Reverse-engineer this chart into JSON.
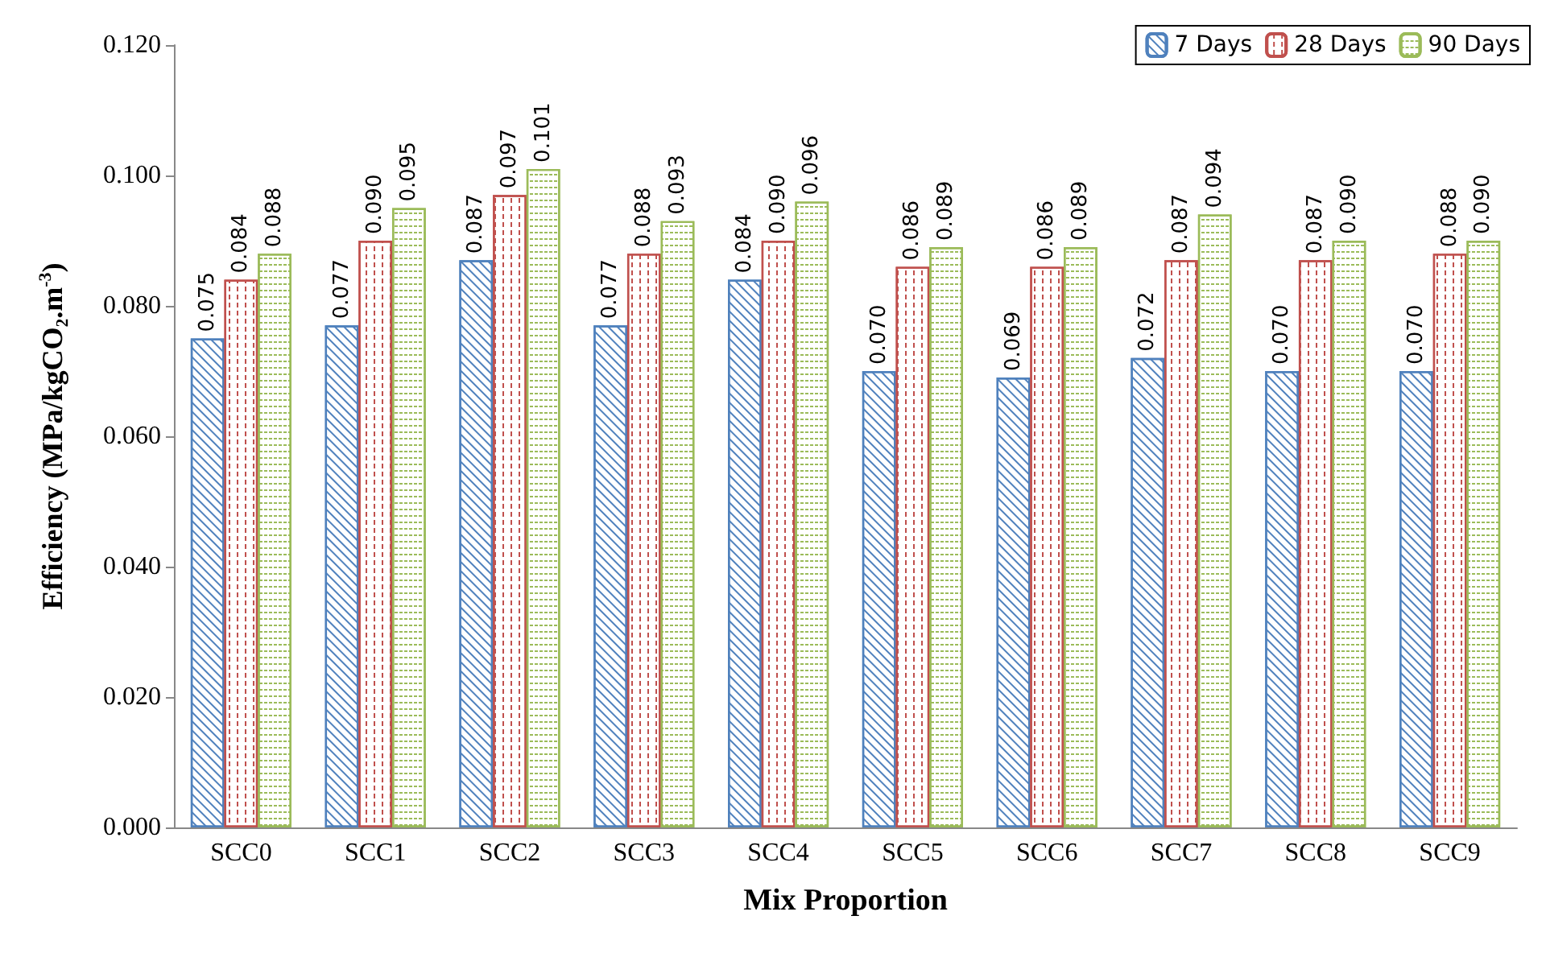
{
  "chart_data": {
    "type": "bar",
    "xlabel": "Mix Proportion",
    "ylabel": "Efficiency (MPa/kgCO₂.m$^{-3}$)",
    "categories": [
      "SCC0",
      "SCC1",
      "SCC2",
      "SCC3",
      "SCC4",
      "SCC5",
      "SCC6",
      "SCC7",
      "SCC8",
      "SCC9"
    ],
    "series": [
      {
        "name": "7 Days",
        "color": "#4f81bd",
        "values": [
          0.075,
          0.077,
          0.087,
          0.077,
          0.084,
          0.07,
          0.069,
          0.072,
          0.07,
          0.07
        ],
        "value_labels": [
          "0.075",
          "0.077",
          "0.087",
          "0.077",
          "0.084",
          "0.070",
          "0.069",
          "0.072",
          "0.070",
          "0.070"
        ]
      },
      {
        "name": "28 Days",
        "color": "#c0504d",
        "values": [
          0.084,
          0.09,
          0.097,
          0.088,
          0.09,
          0.086,
          0.086,
          0.087,
          0.087,
          0.088
        ],
        "value_labels": [
          "0.084",
          "0.090",
          "0.097",
          "0.088",
          "0.090",
          "0.086",
          "0.086",
          "0.087",
          "0.087",
          "0.088"
        ]
      },
      {
        "name": "90 Days",
        "color": "#9bbb59",
        "values": [
          0.088,
          0.095,
          0.101,
          0.093,
          0.096,
          0.089,
          0.089,
          0.094,
          0.09,
          0.09
        ],
        "value_labels": [
          "0.088",
          "0.095",
          "0.101",
          "0.093",
          "0.096",
          "0.089",
          "0.089",
          "0.094",
          "0.090",
          "0.090"
        ]
      }
    ],
    "ylim": [
      0,
      0.12
    ],
    "yticks": [
      {
        "value": 0,
        "label": "0.000"
      },
      {
        "value": 0.02,
        "label": "0.020"
      },
      {
        "value": 0.04,
        "label": "0.040"
      },
      {
        "value": 0.06,
        "label": "0.060"
      },
      {
        "value": 0.08,
        "label": "0.080"
      },
      {
        "value": 0.1,
        "label": "0.100"
      },
      {
        "value": 0.12,
        "label": "0.120"
      }
    ],
    "legend": "top right"
  }
}
